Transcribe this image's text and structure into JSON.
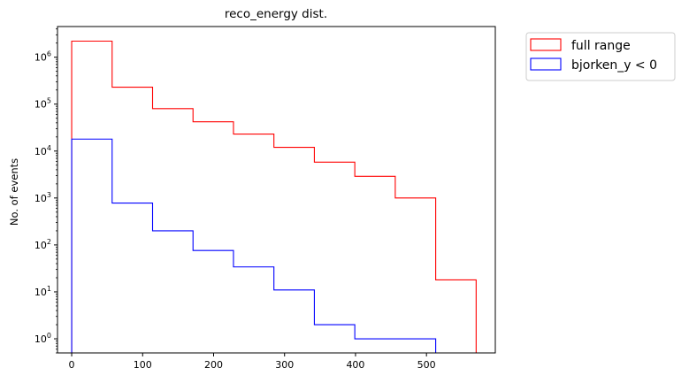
{
  "chart_data": {
    "type": "histogram-step",
    "title": "reco_energy dist.",
    "xlabel": "",
    "ylabel": "No. of events",
    "yscale": "log",
    "xlim": [
      -20,
      597
    ],
    "ylim": [
      0.5,
      4500000
    ],
    "x_ticks": [
      0,
      100,
      200,
      300,
      400,
      500
    ],
    "x_tick_labels": [
      "0",
      "100",
      "200",
      "300",
      "400",
      "500"
    ],
    "y_ticks": [
      1,
      10,
      100,
      1000,
      10000,
      100000,
      1000000
    ],
    "y_tick_labels": [
      {
        "base": "10",
        "exp": "0"
      },
      {
        "base": "10",
        "exp": "1"
      },
      {
        "base": "10",
        "exp": "2"
      },
      {
        "base": "10",
        "exp": "3"
      },
      {
        "base": "10",
        "exp": "4"
      },
      {
        "base": "10",
        "exp": "5"
      },
      {
        "base": "10",
        "exp": "6"
      }
    ],
    "grid": false,
    "legend_position": "outside-top-right",
    "series": [
      {
        "name": "full range",
        "color": "#ff0000",
        "bin_edges": [
          0,
          57,
          114,
          171,
          228,
          285,
          342,
          399,
          456,
          513,
          570
        ],
        "counts": [
          2200000,
          230000,
          80000,
          42000,
          23000,
          12000,
          5800,
          2900,
          1000,
          18
        ]
      },
      {
        "name": "bjorken_y < 0",
        "color": "#0000ff",
        "bin_edges": [
          0,
          57,
          114,
          171,
          228,
          285,
          342,
          399,
          456,
          513
        ],
        "counts": [
          18000,
          780,
          200,
          76,
          34,
          11,
          2,
          1,
          1
        ]
      }
    ]
  }
}
